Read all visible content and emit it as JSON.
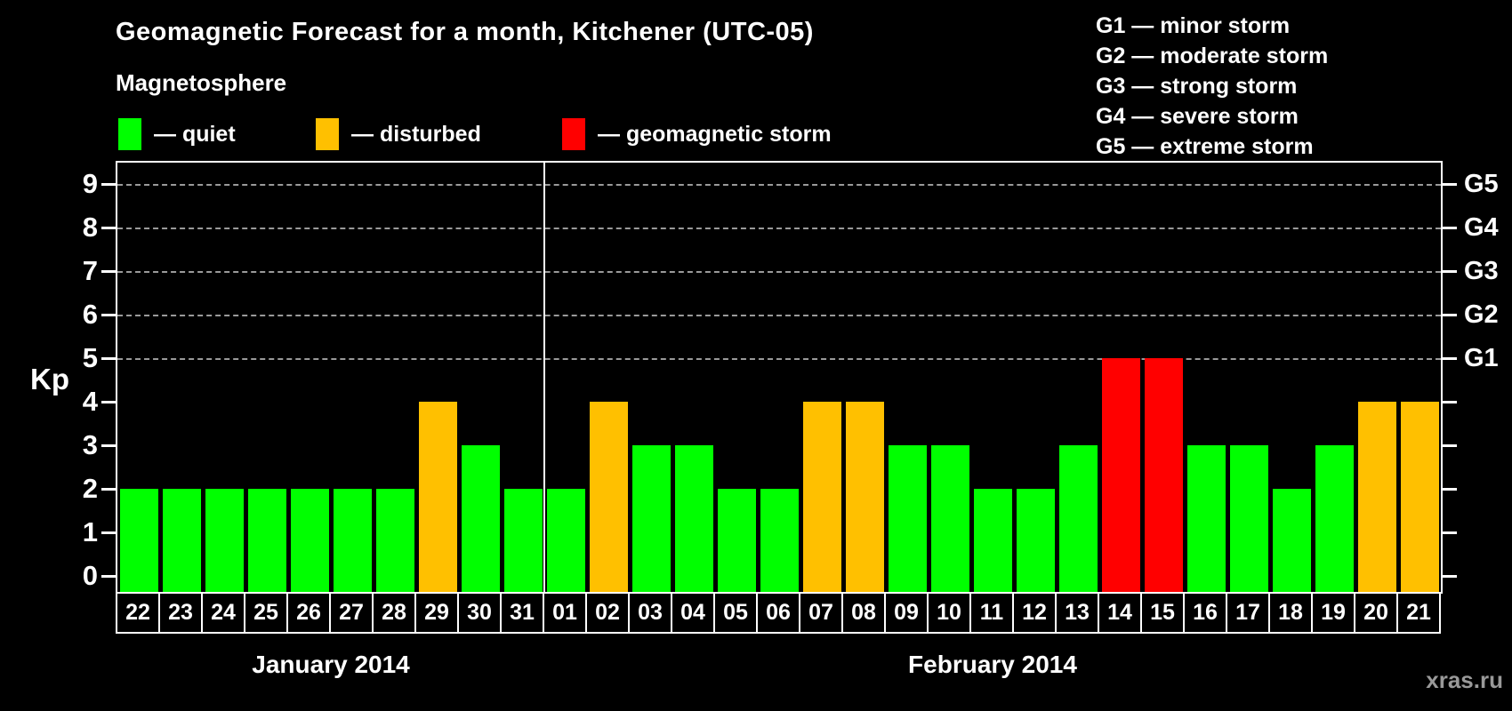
{
  "title": "Geomagnetic Forecast for a month, Kitchener (UTC-05)",
  "subtitle": "Magnetosphere",
  "watermark": "xras.ru",
  "legend": {
    "items": [
      {
        "status": "quiet",
        "label": "— quiet",
        "color": "#00ff00"
      },
      {
        "status": "disturbed",
        "label": "— disturbed",
        "color": "#ffc000"
      },
      {
        "status": "storm",
        "label": "— geomagnetic storm",
        "color": "#ff0000"
      }
    ]
  },
  "g_legend": [
    {
      "text": "G1 — minor storm"
    },
    {
      "text": "G2 — moderate storm"
    },
    {
      "text": "G3 — strong storm"
    },
    {
      "text": "G4 — severe storm"
    },
    {
      "text": "G5 — extreme storm"
    }
  ],
  "chart_data": {
    "type": "bar",
    "title": "Geomagnetic Forecast for a month, Kitchener (UTC-05)",
    "ylabel": "Kp",
    "ylim": [
      0,
      9
    ],
    "y_ticks": [
      "0",
      "1",
      "2",
      "3",
      "4",
      "5",
      "6",
      "7",
      "8",
      "9"
    ],
    "gridlines_at": [
      5,
      6,
      7,
      8,
      9
    ],
    "right_axis_labels": [
      {
        "kp": 5,
        "label": "G1"
      },
      {
        "kp": 6,
        "label": "G2"
      },
      {
        "kp": 7,
        "label": "G3"
      },
      {
        "kp": 8,
        "label": "G4"
      },
      {
        "kp": 9,
        "label": "G5"
      }
    ],
    "status_colors": {
      "quiet": "#00ff00",
      "disturbed": "#ffc000",
      "storm": "#ff0000"
    },
    "months": [
      "January 2014",
      "February 2014"
    ],
    "points": [
      {
        "month": 0,
        "day": "22",
        "kp": 2,
        "status": "quiet"
      },
      {
        "month": 0,
        "day": "23",
        "kp": 2,
        "status": "quiet"
      },
      {
        "month": 0,
        "day": "24",
        "kp": 2,
        "status": "quiet"
      },
      {
        "month": 0,
        "day": "25",
        "kp": 2,
        "status": "quiet"
      },
      {
        "month": 0,
        "day": "26",
        "kp": 2,
        "status": "quiet"
      },
      {
        "month": 0,
        "day": "27",
        "kp": 2,
        "status": "quiet"
      },
      {
        "month": 0,
        "day": "28",
        "kp": 2,
        "status": "quiet"
      },
      {
        "month": 0,
        "day": "29",
        "kp": 4,
        "status": "disturbed"
      },
      {
        "month": 0,
        "day": "30",
        "kp": 3,
        "status": "quiet"
      },
      {
        "month": 0,
        "day": "31",
        "kp": 2,
        "status": "quiet"
      },
      {
        "month": 1,
        "day": "01",
        "kp": 2,
        "status": "quiet"
      },
      {
        "month": 1,
        "day": "02",
        "kp": 4,
        "status": "disturbed"
      },
      {
        "month": 1,
        "day": "03",
        "kp": 3,
        "status": "quiet"
      },
      {
        "month": 1,
        "day": "04",
        "kp": 3,
        "status": "quiet"
      },
      {
        "month": 1,
        "day": "05",
        "kp": 2,
        "status": "quiet"
      },
      {
        "month": 1,
        "day": "06",
        "kp": 2,
        "status": "quiet"
      },
      {
        "month": 1,
        "day": "07",
        "kp": 4,
        "status": "disturbed"
      },
      {
        "month": 1,
        "day": "08",
        "kp": 4,
        "status": "disturbed"
      },
      {
        "month": 1,
        "day": "09",
        "kp": 3,
        "status": "quiet"
      },
      {
        "month": 1,
        "day": "10",
        "kp": 3,
        "status": "quiet"
      },
      {
        "month": 1,
        "day": "11",
        "kp": 2,
        "status": "quiet"
      },
      {
        "month": 1,
        "day": "12",
        "kp": 2,
        "status": "quiet"
      },
      {
        "month": 1,
        "day": "13",
        "kp": 3,
        "status": "quiet"
      },
      {
        "month": 1,
        "day": "14",
        "kp": 5,
        "status": "storm"
      },
      {
        "month": 1,
        "day": "15",
        "kp": 5,
        "status": "storm"
      },
      {
        "month": 1,
        "day": "16",
        "kp": 3,
        "status": "quiet"
      },
      {
        "month": 1,
        "day": "17",
        "kp": 3,
        "status": "quiet"
      },
      {
        "month": 1,
        "day": "18",
        "kp": 2,
        "status": "quiet"
      },
      {
        "month": 1,
        "day": "19",
        "kp": 3,
        "status": "quiet"
      },
      {
        "month": 1,
        "day": "20",
        "kp": 4,
        "status": "disturbed"
      },
      {
        "month": 1,
        "day": "21",
        "kp": 4,
        "status": "disturbed"
      }
    ]
  }
}
